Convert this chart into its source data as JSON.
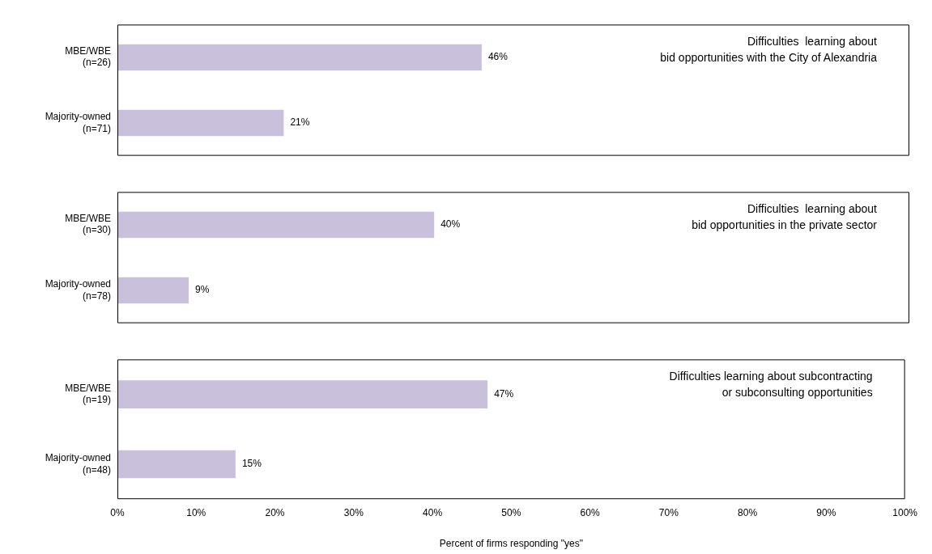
{
  "chart_data": [
    {
      "type": "bar",
      "orientation": "horizontal",
      "title": "Difficulties  learning about\nbid opportunities with the City of Alexandria",
      "categories": [
        "MBE/WBE\n(n=26)",
        "Majority-owned\n(n=71)"
      ],
      "values": [
        46,
        21
      ],
      "value_labels": [
        "46%",
        "21%"
      ],
      "color": "#c9c0dc",
      "xlim": [
        0,
        100
      ],
      "tick_labels": "y"
    },
    {
      "type": "bar",
      "orientation": "horizontal",
      "title": "Difficulties  learning about\nbid opportunities in the private sector",
      "categories": [
        "MBE/WBE\n(n=30)",
        "Majority-owned\n(n=78)"
      ],
      "values": [
        40,
        9
      ],
      "value_labels": [
        "40%",
        "9%"
      ],
      "color": "#c9c0dc",
      "xlim": [
        0,
        100
      ],
      "tick_labels": "y"
    },
    {
      "type": "bar",
      "orientation": "horizontal",
      "title": "Difficulties learning about subcontracting\nor subconsulting opportunities",
      "categories": [
        "MBE/WBE\n(n=19)",
        "Majority-owned\n(n=48)"
      ],
      "values": [
        47,
        15
      ],
      "value_labels": [
        "47%",
        "15%"
      ],
      "color": "#c9c0dc",
      "xlim": [
        0,
        100
      ],
      "xlabel": "Percent of firms responding \"yes\"",
      "xticks": [
        {
          "value": 0,
          "label": "0%"
        },
        {
          "value": 10,
          "label": "10%"
        },
        {
          "value": 20,
          "label": "20%"
        },
        {
          "value": 30,
          "label": "30%"
        },
        {
          "value": 40,
          "label": "40%"
        },
        {
          "value": 50,
          "label": "50%"
        },
        {
          "value": 60,
          "label": "60%"
        },
        {
          "value": 70,
          "label": "70%"
        },
        {
          "value": 80,
          "label": "80%"
        },
        {
          "value": 90,
          "label": "90%"
        },
        {
          "value": 100,
          "label": "100%"
        }
      ]
    }
  ]
}
